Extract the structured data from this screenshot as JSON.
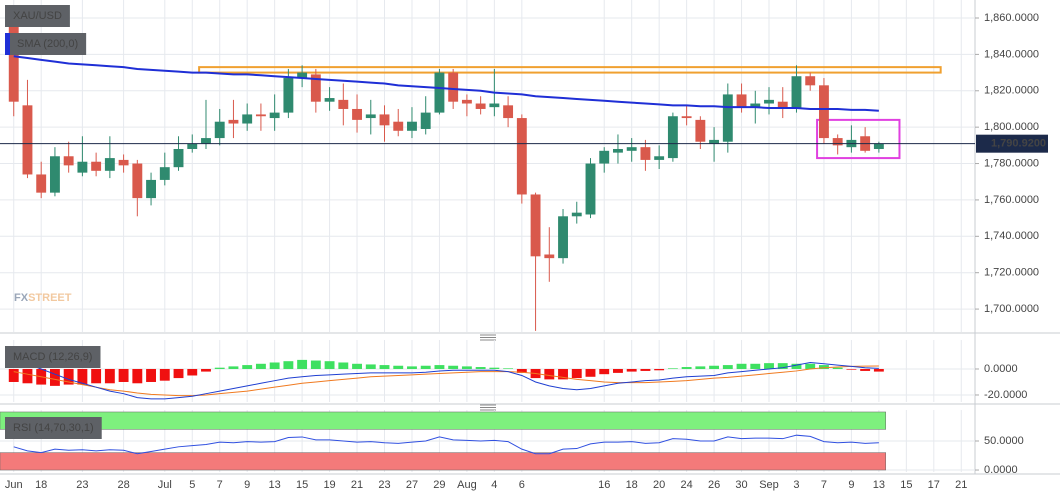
{
  "chart_data": [
    {
      "type": "candlestick",
      "title": "XAU/USD",
      "categories": [
        "Jun",
        null,
        "18",
        null,
        null,
        "23",
        null,
        null,
        "28",
        null,
        null,
        "Jul",
        null,
        "5",
        null,
        "7",
        null,
        "9",
        null,
        "13",
        null,
        "15",
        null,
        "19",
        null,
        "21",
        null,
        "23",
        null,
        "27",
        null,
        "29",
        null,
        "Aug",
        null,
        "4",
        null,
        "6",
        null,
        null,
        null,
        null,
        null,
        "16",
        null,
        "18",
        null,
        "20",
        null,
        "24",
        null,
        "26",
        null,
        "30",
        null,
        "Sep",
        null,
        "3",
        null,
        "7",
        null,
        "9",
        null,
        "13",
        null,
        "15",
        null,
        "17",
        null,
        "21"
      ],
      "open": [
        1860,
        1812,
        1774,
        1764,
        1784,
        1775,
        1781,
        1776,
        1782,
        1780,
        1761,
        1771,
        1778,
        1788,
        1791,
        1794,
        1804,
        1802,
        1807,
        1805,
        1808,
        1827,
        1829,
        1814,
        1815,
        1810,
        1805,
        1807,
        1803,
        1798,
        1799,
        1808,
        1830,
        1815,
        1813,
        1811,
        1812,
        1805,
        1763,
        1730,
        1728,
        1751,
        1752,
        1780,
        1786,
        1787,
        1789,
        1782,
        1783,
        1806,
        1804,
        1791,
        1792,
        1818,
        1811,
        1813,
        1814,
        1810,
        1828,
        1823,
        1794,
        1789,
        1795,
        1788,
        null,
        null,
        null,
        null,
        null,
        null
      ],
      "high": [
        1866,
        1826,
        1781,
        1789,
        1792,
        1795,
        1786,
        1795,
        1785,
        1782,
        1775,
        1786,
        1795,
        1796,
        1815,
        1810,
        1815,
        1813,
        1813,
        1818,
        1832,
        1834,
        1832,
        1822,
        1824,
        1818,
        1815,
        1812,
        1810,
        1811,
        1817,
        1832,
        1832,
        1818,
        1817,
        1832,
        1817,
        1807,
        1764,
        1745,
        1755,
        1759,
        1783,
        1789,
        1796,
        1794,
        1793,
        1790,
        1808,
        1812,
        1806,
        1800,
        1824,
        1824,
        1820,
        1822,
        1822,
        1834,
        1830,
        1827,
        1796,
        1801,
        1800,
        1792,
        null,
        null,
        null,
        null,
        null,
        null
      ],
      "low": [
        1806,
        1772,
        1761,
        1762,
        1775,
        1773,
        1773,
        1772,
        1775,
        1751,
        1757,
        1768,
        1776,
        1786,
        1788,
        1790,
        1794,
        1798,
        1798,
        1798,
        1805,
        1822,
        1808,
        1809,
        1801,
        1797,
        1796,
        1792,
        1795,
        1794,
        1796,
        1807,
        1810,
        1806,
        1807,
        1806,
        1800,
        1758,
        1688,
        1715,
        1725,
        1747,
        1750,
        1775,
        1780,
        1781,
        1776,
        1777,
        1781,
        1801,
        1788,
        1781,
        1786,
        1808,
        1802,
        1807,
        1805,
        1808,
        1820,
        1791,
        1785,
        1786,
        1786,
        1786,
        null,
        null,
        null,
        null,
        null,
        null
      ],
      "close": [
        1814,
        1774,
        1764,
        1784,
        1779,
        1781,
        1776,
        1783,
        1779,
        1761,
        1771,
        1778,
        1788,
        1791,
        1794,
        1803,
        1802,
        1807,
        1806,
        1808,
        1827,
        1830,
        1814,
        1816,
        1810,
        1804,
        1807,
        1801,
        1798,
        1803,
        1808,
        1830,
        1814,
        1813,
        1810,
        1813,
        1805,
        1763,
        1729,
        1728,
        1751,
        1753,
        1780,
        1787,
        1788,
        1789,
        1782,
        1784,
        1806,
        1805,
        1792,
        1793,
        1818,
        1811,
        1813,
        1815,
        1810,
        1828,
        1823,
        1794,
        1790,
        1793,
        1787,
        1790.92,
        null,
        null,
        null,
        null,
        null,
        null
      ],
      "up_color": "#2f8a6f",
      "down_color": "#d9594c",
      "sma": {
        "name": "SMA (200,0)",
        "color": "#1f2fd6",
        "values": [
          1839,
          1838,
          1837,
          1836,
          1835,
          1834.5,
          1834,
          1833.5,
          1833,
          1832,
          1831.5,
          1831,
          1830.5,
          1830,
          1830,
          1829.5,
          1829,
          1829,
          1828.5,
          1828,
          1827.5,
          1827,
          1826.5,
          1826,
          1825.5,
          1825,
          1824.5,
          1824,
          1823,
          1822.5,
          1822,
          1821.5,
          1821,
          1820.5,
          1820,
          1819,
          1818.5,
          1818,
          1817,
          1816.5,
          1816,
          1815.5,
          1815,
          1814.5,
          1814,
          1813.5,
          1813,
          1812.5,
          1812,
          1812,
          1811.5,
          1811.5,
          1811,
          1811,
          1811,
          1810.5,
          1810.5,
          1810.5,
          1810,
          1810,
          1810,
          1809.5,
          1809.5,
          1809,
          null,
          null,
          null,
          null,
          null,
          null
        ]
      },
      "last_price": {
        "value": 1790.92,
        "label": "1,790.9200"
      },
      "zones": [
        {
          "from": 14,
          "to": 68,
          "low": 1830,
          "high": 1833,
          "color": "#f0a030"
        },
        {
          "from": 59,
          "to": 65,
          "low": 1783,
          "high": 1804,
          "color": "#e040e0"
        }
      ],
      "watermark": [
        "FX",
        "STREET"
      ],
      "ylim": [
        1687.4,
        1869.9
      ],
      "yticks": [
        {
          "value": 1700,
          "label": "1,700.0000"
        },
        {
          "value": 1720,
          "label": "1,720.0000"
        },
        {
          "value": 1740,
          "label": "1,740.0000"
        },
        {
          "value": 1760,
          "label": "1,760.0000"
        },
        {
          "value": 1780,
          "label": "1,780.0000"
        },
        {
          "value": 1800,
          "label": "1,800.0000"
        },
        {
          "value": 1820,
          "label": "1,820.0000"
        },
        {
          "value": 1840,
          "label": "1,840.0000"
        },
        {
          "value": 1860,
          "label": "1,860.0000"
        }
      ],
      "grid": true
    },
    {
      "type": "macd",
      "title": "MACD (12,26,9)",
      "histogram": {
        "positive_color": "#3ee060",
        "negative_color": "#f01010",
        "values": [
          -10,
          -11,
          -12,
          -13,
          -12,
          -12,
          -11,
          -11,
          -10,
          -11,
          -10,
          -9,
          -7,
          -5,
          -2,
          1,
          2,
          3,
          4,
          5,
          6,
          7,
          6.5,
          6,
          5,
          4,
          3.5,
          3,
          2.5,
          2,
          2.5,
          3,
          2.5,
          2,
          1.5,
          1,
          0.5,
          -3,
          -7,
          -8,
          -8,
          -7,
          -6,
          -4,
          -3,
          -2,
          -1.5,
          -1,
          0.5,
          1.5,
          2,
          2.5,
          3,
          4,
          4,
          4.5,
          4.5,
          4,
          4,
          3,
          1,
          -0.5,
          -1.5,
          -2,
          null,
          null,
          null,
          null,
          null,
          null
        ]
      },
      "macd": {
        "color": "#1f3fd1",
        "values": [
          8,
          4,
          0,
          -4,
          -8,
          -11,
          -14,
          -17,
          -19,
          -22,
          -23,
          -23,
          -22,
          -21,
          -19,
          -17,
          -15,
          -13,
          -11,
          -9,
          -7,
          -6,
          -5,
          -4.5,
          -4,
          -3.5,
          -3,
          -3,
          -3,
          -3,
          -2.5,
          -1.5,
          -1,
          -1,
          -1,
          -1,
          -2,
          -5,
          -10,
          -13,
          -15,
          -16,
          -15,
          -13,
          -11,
          -10,
          -9,
          -8.5,
          -7,
          -6,
          -5.5,
          -5,
          -3,
          -2,
          -1,
          0,
          1,
          3,
          5,
          4,
          3,
          2,
          1,
          0.5,
          null,
          null,
          null,
          null,
          null,
          null
        ]
      },
      "signal": {
        "color": "#f07a20",
        "values": [
          -2,
          -4,
          -6,
          -8,
          -10,
          -12,
          -14,
          -16,
          -17,
          -18.5,
          -19.5,
          -20,
          -20.5,
          -20.5,
          -20,
          -19,
          -18,
          -17,
          -15.5,
          -14,
          -12.5,
          -11,
          -10,
          -9,
          -8,
          -7,
          -6,
          -5.5,
          -5,
          -4.5,
          -4,
          -3.5,
          -3,
          -2.5,
          -2,
          -2,
          -2,
          -2.5,
          -3.5,
          -5,
          -6.5,
          -8,
          -9,
          -10,
          -10.5,
          -10.5,
          -10.5,
          -10,
          -9.5,
          -9,
          -8,
          -7,
          -6.5,
          -5.5,
          -4.5,
          -3.5,
          -2.5,
          -1.5,
          0,
          1,
          1.5,
          2,
          2.2,
          2.3,
          null,
          null,
          null,
          null,
          null,
          null
        ]
      },
      "ylim": [
        -25.4,
        22.3
      ],
      "yticks": [
        {
          "value": -20,
          "label": "-20.0000"
        },
        {
          "value": 0,
          "label": "0.0000"
        }
      ]
    },
    {
      "type": "rsi",
      "title": "RSI (14,70,30,1)",
      "color": "#3050e0",
      "values": [
        40,
        33,
        30,
        36,
        34,
        35,
        33,
        35,
        34,
        28,
        32,
        36,
        40,
        42,
        44,
        48,
        47,
        49,
        48,
        49,
        56,
        57,
        52,
        52,
        50,
        48,
        49,
        47,
        46,
        48,
        50,
        57,
        52,
        51,
        50,
        51,
        49,
        36,
        28,
        28,
        36,
        37,
        45,
        48,
        48,
        49,
        46,
        47,
        54,
        53,
        50,
        50,
        57,
        54,
        55,
        55,
        54,
        60,
        58,
        49,
        47,
        48,
        46,
        47,
        null,
        null,
        null,
        null,
        null,
        null
      ],
      "bands": [
        {
          "from": 70,
          "to": 100,
          "color": "#7ef07e"
        },
        {
          "from": 0,
          "to": 30,
          "color": "#f47a7a"
        }
      ],
      "ylim": [
        -3.4,
        103.4
      ],
      "yticks": [
        {
          "value": 0,
          "label": "0.0000"
        },
        {
          "value": 50,
          "label": "50.0000"
        }
      ]
    }
  ]
}
